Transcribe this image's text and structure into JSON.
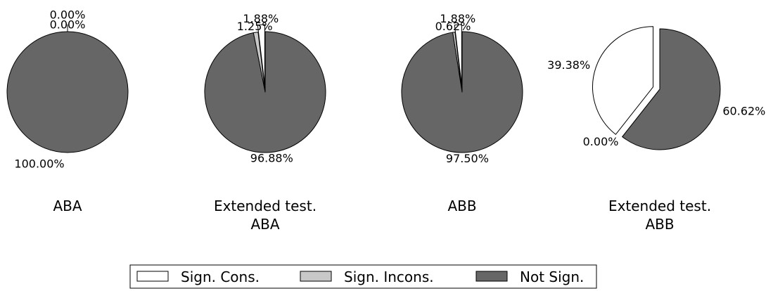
{
  "chart_data": {
    "type": "pie",
    "series_colors": {
      "Sign. Cons.": "#ffffff",
      "Sign. Incons.": "#c8c8c8",
      "Not Sign.": "#666666"
    },
    "edge_color": "#000000",
    "legend": {
      "placement": "bottom-center",
      "entries": [
        "Sign. Cons.",
        "Sign. Incons.",
        "Not Sign."
      ]
    },
    "pies": [
      {
        "caption": [
          "ABA"
        ],
        "slices": [
          {
            "category": "Sign. Cons.",
            "value": 0.0,
            "label": "0.00%"
          },
          {
            "category": "Sign. Incons.",
            "value": 0.0,
            "label": "0.00%"
          },
          {
            "category": "Not Sign.",
            "value": 100.0,
            "label": "100.00%"
          }
        ]
      },
      {
        "caption": [
          "Extended test.",
          "ABA"
        ],
        "slices": [
          {
            "category": "Sign. Cons.",
            "value": 1.88,
            "label": "1.88%"
          },
          {
            "category": "Sign. Incons.",
            "value": 1.25,
            "label": "1.25%"
          },
          {
            "category": "Not Sign.",
            "value": 96.88,
            "label": "96.88%"
          }
        ]
      },
      {
        "caption": [
          "ABB"
        ],
        "slices": [
          {
            "category": "Sign. Cons.",
            "value": 1.88,
            "label": "1.88%"
          },
          {
            "category": "Sign. Incons.",
            "value": 0.62,
            "label": "0.62%"
          },
          {
            "category": "Not Sign.",
            "value": 97.5,
            "label": "97.50%"
          }
        ]
      },
      {
        "caption": [
          "Extended test.",
          "ABB"
        ],
        "slices": [
          {
            "category": "Sign. Cons.",
            "value": 39.38,
            "label": "39.38%"
          },
          {
            "category": "Sign. Incons.",
            "value": 0.0,
            "label": "0.00%"
          },
          {
            "category": "Not Sign.",
            "value": 60.62,
            "label": "60.62%"
          }
        ]
      }
    ]
  }
}
